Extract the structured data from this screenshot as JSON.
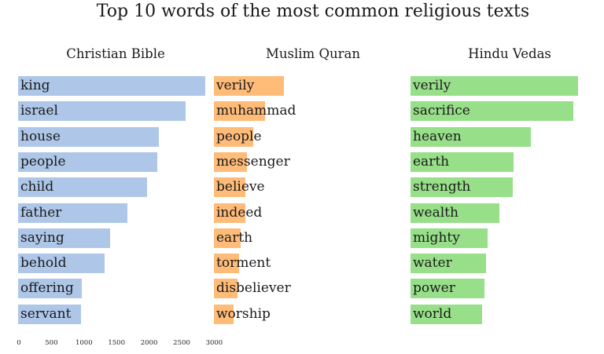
{
  "chart_data": {
    "type": "bar",
    "orientation": "horizontal",
    "title": "Top 10 words of the most common religious texts",
    "xlabel": "",
    "ylabel": "",
    "xlim": [
      0,
      3000
    ],
    "xticks": [
      0,
      500,
      1000,
      1500,
      2000,
      2500,
      3000
    ],
    "grid": false,
    "legend": null,
    "panels": [
      {
        "name": "Christian Bible",
        "color": "#aec7e8",
        "categories": [
          "king",
          "israel",
          "house",
          "people",
          "child",
          "father",
          "saying",
          "behold",
          "offering",
          "servant"
        ],
        "values": [
          2875,
          2570,
          2160,
          2140,
          1980,
          1680,
          1410,
          1330,
          980,
          965
        ]
      },
      {
        "name": "Muslim Quran",
        "color": "#ffbb78",
        "categories": [
          "verily",
          "muhammad",
          "people",
          "messenger",
          "believe",
          "indeed",
          "earth",
          "torment",
          "disbeliever",
          "worship"
        ],
        "values": [
          1075,
          785,
          605,
          505,
          485,
          485,
          410,
          385,
          360,
          300
        ]
      },
      {
        "name": "Hindu Vedas",
        "color": "#98df8a",
        "categories": [
          "verily",
          "sacrifice",
          "heaven",
          "earth",
          "strength",
          "wealth",
          "mighty",
          "water",
          "power",
          "world"
        ],
        "values": [
          2570,
          2500,
          1850,
          1580,
          1570,
          1365,
          1185,
          1160,
          1135,
          1100
        ]
      }
    ]
  },
  "title": "Top 10 words of the most common religious texts",
  "axis": {
    "ticks": [
      "0",
      "500",
      "1000",
      "1500",
      "2000",
      "2500",
      "3000"
    ]
  },
  "panels": [
    {
      "title": "Christian Bible",
      "color": "#aec7e8"
    },
    {
      "title": "Muslim Quran",
      "color": "#ffbb78"
    },
    {
      "title": "Hindu Vedas",
      "color": "#98df8a"
    }
  ]
}
